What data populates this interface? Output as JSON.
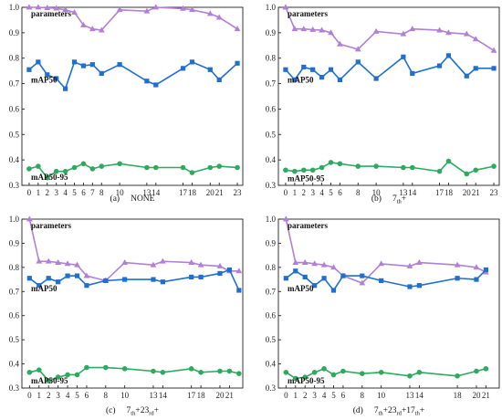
{
  "chart_data": [
    {
      "type": "line",
      "caption": {
        "label": "(a)",
        "text": "NONE"
      },
      "ylim": [
        0.3,
        1.0
      ],
      "yticks": [
        0.3,
        0.4,
        0.5,
        0.6,
        0.7,
        0.8,
        0.9,
        1.0
      ],
      "xlim": [
        -0.8,
        23.6
      ],
      "xticks": [
        0,
        1,
        2,
        3,
        4,
        5,
        6,
        7,
        8,
        10,
        13,
        14,
        17,
        18,
        20,
        21,
        23
      ],
      "xtick_labels": [
        "0",
        "1",
        "2",
        "3",
        "4",
        "5",
        "6",
        "7",
        "8",
        "10",
        "13",
        "14",
        "17",
        "18",
        "20",
        "21",
        "23"
      ],
      "series": [
        {
          "name": "parameters",
          "color": "#b27fd6",
          "marker": "triangle",
          "x": [
            0,
            1,
            2,
            3,
            4,
            5,
            6,
            7,
            8,
            10,
            13,
            14,
            17,
            18,
            20,
            21,
            23
          ],
          "values": [
            1.0,
            1.0,
            0.998,
            0.996,
            0.99,
            0.98,
            0.93,
            0.915,
            0.91,
            0.99,
            0.985,
            1.0,
            0.995,
            0.99,
            0.975,
            0.96,
            0.915
          ]
        },
        {
          "name": "mAP50",
          "color": "#1f6fd1",
          "marker": "square",
          "x": [
            0,
            1,
            2,
            3,
            4,
            5,
            6,
            7,
            8,
            10,
            13,
            14,
            17,
            18,
            20,
            21,
            23
          ],
          "values": [
            0.755,
            0.785,
            0.735,
            0.72,
            0.68,
            0.785,
            0.77,
            0.775,
            0.74,
            0.775,
            0.71,
            0.695,
            0.76,
            0.785,
            0.755,
            0.715,
            0.78
          ]
        },
        {
          "name": "mAP50-95",
          "color": "#2eaa5f",
          "marker": "circle",
          "x": [
            0,
            1,
            2,
            3,
            4,
            5,
            6,
            7,
            8,
            10,
            13,
            14,
            17,
            18,
            20,
            21,
            23
          ],
          "values": [
            0.365,
            0.375,
            0.33,
            0.355,
            0.355,
            0.37,
            0.385,
            0.365,
            0.375,
            0.385,
            0.37,
            0.37,
            0.37,
            0.35,
            0.37,
            0.375,
            0.37
          ]
        }
      ]
    },
    {
      "type": "line",
      "caption": {
        "label": "(b)",
        "text": "7",
        "sub": "th",
        "tail": "+"
      },
      "ylim": [
        0.3,
        1.0
      ],
      "yticks": [
        0.3,
        0.4,
        0.5,
        0.6,
        0.7,
        0.8,
        0.9,
        1.0
      ],
      "xlim": [
        -0.8,
        23.6
      ],
      "xticks": [
        0,
        1,
        2,
        3,
        4,
        5,
        6,
        8,
        10,
        13,
        14,
        17,
        18,
        20,
        21,
        23
      ],
      "xtick_labels": [
        "0",
        "1",
        "2",
        "3",
        "4",
        "5",
        "6",
        "8",
        "10",
        "13",
        "14",
        "17",
        "18",
        "20",
        "21",
        "23"
      ],
      "series": [
        {
          "name": "parameters",
          "color": "#b27fd6",
          "marker": "triangle",
          "x": [
            0,
            1,
            2,
            3,
            4,
            5,
            6,
            8,
            10,
            13,
            14,
            17,
            18,
            20,
            21,
            23
          ],
          "values": [
            1.0,
            0.915,
            0.915,
            0.912,
            0.91,
            0.9,
            0.855,
            0.835,
            0.905,
            0.895,
            0.915,
            0.91,
            0.9,
            0.895,
            0.875,
            0.83
          ]
        },
        {
          "name": "mAP50",
          "color": "#1f6fd1",
          "marker": "square",
          "x": [
            0,
            1,
            2,
            3,
            4,
            5,
            6,
            8,
            10,
            13,
            14,
            17,
            18,
            20,
            21,
            23
          ],
          "values": [
            0.755,
            0.715,
            0.765,
            0.755,
            0.725,
            0.755,
            0.715,
            0.785,
            0.72,
            0.805,
            0.74,
            0.77,
            0.81,
            0.73,
            0.76,
            0.76
          ]
        },
        {
          "name": "mAP50-95",
          "color": "#2eaa5f",
          "marker": "circle",
          "x": [
            0,
            1,
            2,
            3,
            4,
            5,
            6,
            8,
            10,
            13,
            14,
            17,
            18,
            20,
            21,
            23
          ],
          "values": [
            0.36,
            0.355,
            0.36,
            0.36,
            0.37,
            0.39,
            0.385,
            0.375,
            0.375,
            0.37,
            0.37,
            0.355,
            0.395,
            0.345,
            0.36,
            0.375
          ]
        }
      ]
    },
    {
      "type": "line",
      "caption": {
        "label": "(c)",
        "text": "7",
        "sub": "th",
        "tail": "+23",
        "sub2": "rd",
        "tail2": "+"
      },
      "ylim": [
        0.3,
        1.0
      ],
      "yticks": [
        0.3,
        0.4,
        0.5,
        0.6,
        0.7,
        0.8,
        0.9,
        1.0
      ],
      "xlim": [
        -0.8,
        22.4
      ],
      "xticks": [
        0,
        1,
        2,
        3,
        4,
        5,
        6,
        8,
        10,
        13,
        14,
        17,
        18,
        20,
        21
      ],
      "xtick_labels": [
        "0",
        "1",
        "2",
        "3",
        "4",
        "5",
        "6",
        "8",
        "10",
        "13",
        "14",
        "17",
        "18",
        "20",
        "21"
      ],
      "series": [
        {
          "name": "parameters",
          "color": "#b27fd6",
          "marker": "triangle",
          "x": [
            0,
            1,
            2,
            3,
            4,
            5,
            6,
            8,
            10,
            13,
            14,
            17,
            18,
            20,
            21,
            22
          ],
          "values": [
            1.0,
            0.825,
            0.825,
            0.82,
            0.815,
            0.81,
            0.765,
            0.745,
            0.82,
            0.81,
            0.825,
            0.82,
            0.81,
            0.805,
            0.785,
            0.785
          ]
        },
        {
          "name": "mAP50",
          "color": "#1f6fd1",
          "marker": "square",
          "x": [
            0,
            1,
            2,
            3,
            4,
            5,
            6,
            8,
            10,
            13,
            14,
            17,
            18,
            20,
            21,
            22
          ],
          "values": [
            0.755,
            0.725,
            0.755,
            0.74,
            0.765,
            0.765,
            0.725,
            0.745,
            0.75,
            0.75,
            0.74,
            0.76,
            0.76,
            0.775,
            0.79,
            0.705
          ]
        },
        {
          "name": "mAP50-95",
          "color": "#2eaa5f",
          "marker": "circle",
          "x": [
            0,
            1,
            2,
            3,
            4,
            5,
            6,
            8,
            10,
            13,
            14,
            17,
            18,
            20,
            21,
            22
          ],
          "values": [
            0.365,
            0.375,
            0.33,
            0.345,
            0.355,
            0.355,
            0.385,
            0.385,
            0.38,
            0.37,
            0.365,
            0.38,
            0.365,
            0.37,
            0.37,
            0.36
          ]
        }
      ]
    },
    {
      "type": "line",
      "caption": {
        "label": "(d)",
        "text": "7",
        "sub": "th",
        "tail": "+23",
        "sub2": "rd",
        "tail2": "+17",
        "sub3": "th",
        "tail3": "+"
      },
      "ylim": [
        0.3,
        1.0
      ],
      "yticks": [
        0.3,
        0.4,
        0.5,
        0.6,
        0.7,
        0.8,
        0.9,
        1.0
      ],
      "xlim": [
        -0.8,
        22.4
      ],
      "xticks": [
        0,
        1,
        2,
        3,
        4,
        5,
        6,
        8,
        10,
        13,
        14,
        18,
        20,
        21
      ],
      "xtick_labels": [
        "0",
        "1",
        "2",
        "3",
        "4",
        "5",
        "6",
        "8",
        "10",
        "13",
        "14",
        "18",
        "20",
        "21"
      ],
      "series": [
        {
          "name": "parameters",
          "color": "#b27fd6",
          "marker": "triangle",
          "x": [
            0,
            1,
            2,
            3,
            4,
            5,
            6,
            8,
            10,
            13,
            14,
            18,
            20,
            21
          ],
          "values": [
            1.0,
            0.82,
            0.82,
            0.815,
            0.81,
            0.8,
            0.765,
            0.735,
            0.815,
            0.805,
            0.82,
            0.81,
            0.8,
            0.78
          ]
        },
        {
          "name": "mAP50",
          "color": "#1f6fd1",
          "marker": "square",
          "x": [
            0,
            1,
            2,
            3,
            4,
            5,
            6,
            8,
            10,
            13,
            14,
            18,
            20,
            21
          ],
          "values": [
            0.755,
            0.785,
            0.76,
            0.725,
            0.755,
            0.705,
            0.765,
            0.765,
            0.745,
            0.72,
            0.725,
            0.755,
            0.75,
            0.79
          ]
        },
        {
          "name": "mAP50-95",
          "color": "#2eaa5f",
          "marker": "circle",
          "x": [
            0,
            1,
            2,
            3,
            4,
            5,
            6,
            8,
            10,
            13,
            14,
            18,
            20,
            21
          ],
          "values": [
            0.365,
            0.34,
            0.345,
            0.365,
            0.38,
            0.355,
            0.37,
            0.36,
            0.365,
            0.35,
            0.365,
            0.35,
            0.37,
            0.38
          ]
        }
      ]
    }
  ]
}
